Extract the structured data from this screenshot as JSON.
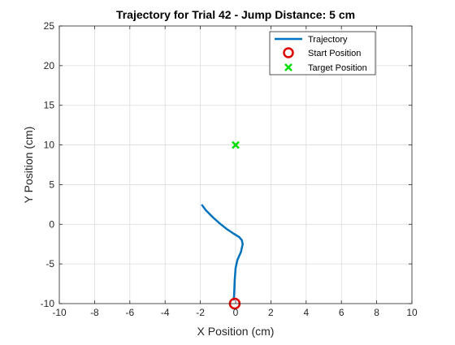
{
  "chart_data": {
    "type": "line",
    "title": "Trajectory for Trial 42 - Jump Distance: 5 cm",
    "xlabel": "X Position (cm)",
    "ylabel": "Y Position (cm)",
    "xlim": [
      -10,
      10
    ],
    "ylim": [
      -10,
      25
    ],
    "xticks": [
      -10,
      -8,
      -6,
      -4,
      -2,
      0,
      2,
      4,
      6,
      8,
      10
    ],
    "yticks": [
      -10,
      -5,
      0,
      5,
      10,
      15,
      20,
      25
    ],
    "grid": true,
    "legend_position": "top-right",
    "series": [
      {
        "name": "Trajectory",
        "kind": "line",
        "color": "#0072BD",
        "x": [
          -0.1,
          -0.08,
          -0.05,
          0.0,
          0.1,
          0.2,
          0.3,
          0.35,
          0.4,
          0.35,
          0.2,
          -0.1,
          -0.5,
          -0.9,
          -1.3,
          -1.7,
          -1.9
        ],
        "y": [
          -9.5,
          -8.5,
          -7.0,
          -5.5,
          -4.5,
          -4.0,
          -3.5,
          -3.0,
          -2.5,
          -2.0,
          -1.6,
          -1.2,
          -0.6,
          0.1,
          0.9,
          1.8,
          2.4
        ]
      },
      {
        "name": "Start Position",
        "kind": "marker-circle",
        "color": "#DD0000",
        "x": [
          -0.05
        ],
        "y": [
          -10
        ]
      },
      {
        "name": "Target Position",
        "kind": "marker-x",
        "color": "#00DD00",
        "x": [
          0.0
        ],
        "y": [
          10
        ]
      }
    ]
  }
}
